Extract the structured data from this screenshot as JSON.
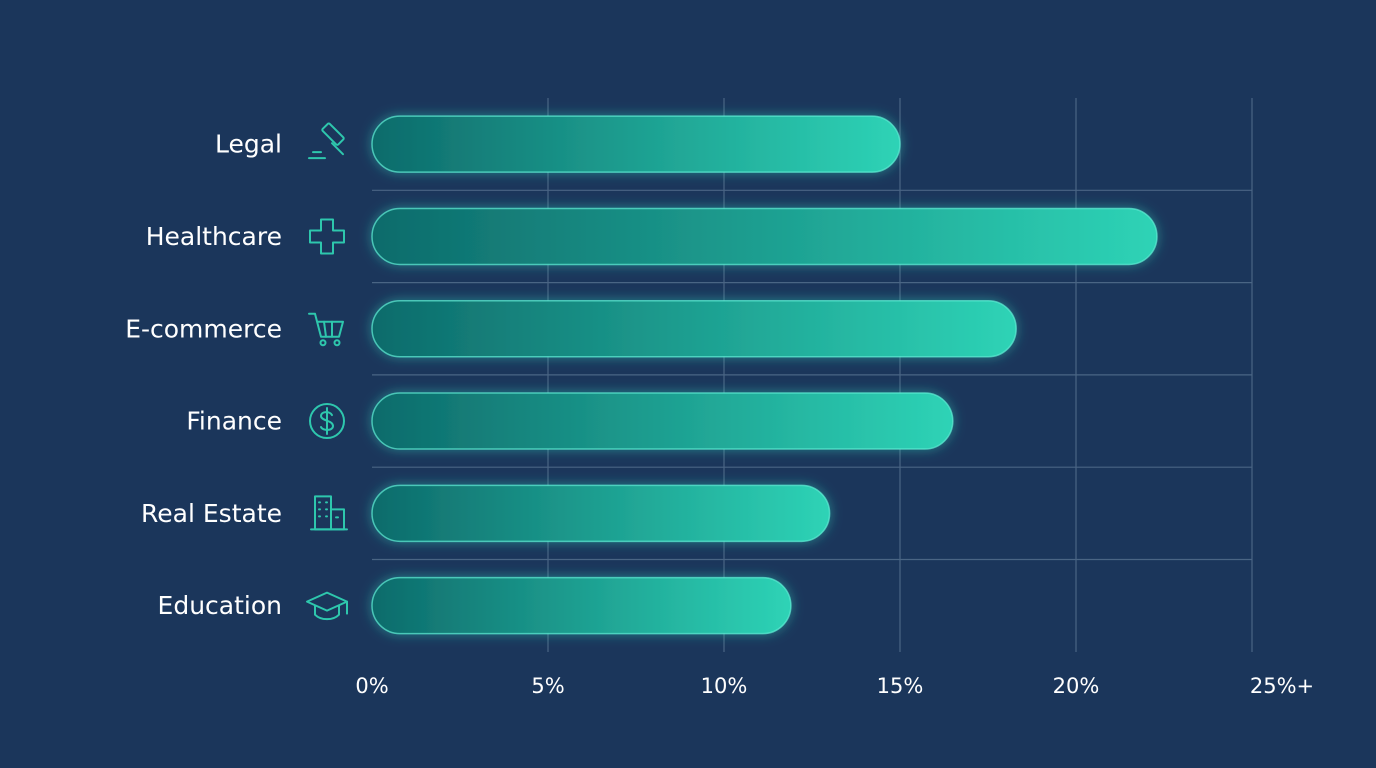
{
  "chart_data": {
    "type": "bar",
    "orientation": "horizontal",
    "categories": [
      "Legal",
      "Healthcare",
      "E-commerce",
      "Finance",
      "Real Estate",
      "Education"
    ],
    "values": [
      15.0,
      22.3,
      18.3,
      16.5,
      13.0,
      11.9
    ],
    "icons": [
      "gavel-icon",
      "medical-cross-icon",
      "shopping-cart-icon",
      "dollar-coin-icon",
      "building-icon",
      "graduation-cap-icon"
    ],
    "xticks": [
      0,
      5,
      10,
      15,
      20,
      25
    ],
    "xtick_labels": [
      "0%",
      "5%",
      "10%",
      "15%",
      "20%",
      "25%+"
    ],
    "xlim": [
      0,
      25
    ],
    "grid": true,
    "colors": {
      "background": "#1b365b",
      "bar_start": "#0d6b6b",
      "bar_end": "#2ed3b6",
      "bar_outline": "#5ff0d6",
      "grid": "#4a6584",
      "axis": "#dff7f7",
      "icon": "#2ec7ad",
      "text": "#ffffff"
    }
  }
}
